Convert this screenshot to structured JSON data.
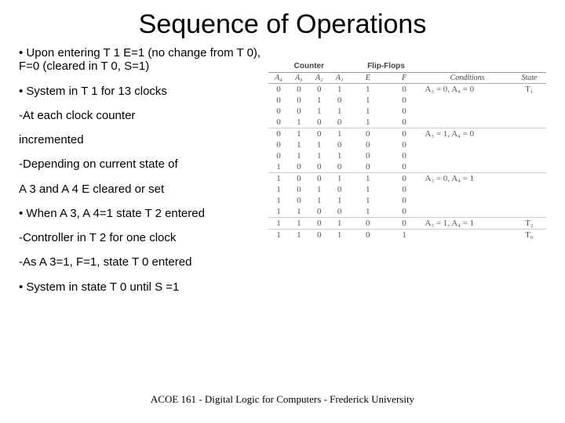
{
  "title": "Sequence of Operations",
  "bullets": [
    "• Upon entering T 1 E=1 (no change from T 0), F=0 (cleared in T 0, S=1)",
    "• System in T 1 for 13 clocks",
    "-At each clock counter",
    "incremented",
    "-Depending on current state of",
    "A 3 and A 4 E cleared or set",
    "• When A 3, A 4=1 state T 2 entered",
    "-Controller in T 2 for one clock",
    "-As A 3=1, F=1, state T 0 entered",
    "• System in state T 0 until S =1"
  ],
  "table": {
    "top_headers": [
      "Counter",
      "Flip-Flops",
      "",
      ""
    ],
    "sub_headers": [
      "A₄",
      "A₃",
      "A₂",
      "A₁",
      "E",
      "F",
      "Conditions",
      "State"
    ],
    "rows": [
      {
        "c": [
          "0",
          "0",
          "0",
          "1",
          "1",
          "0"
        ],
        "cond": "A₃ = 0, A₄ = 0",
        "state": "T₁",
        "grp": true
      },
      {
        "c": [
          "0",
          "0",
          "1",
          "0",
          "1",
          "0"
        ],
        "cond": "",
        "state": ""
      },
      {
        "c": [
          "0",
          "0",
          "1",
          "1",
          "1",
          "0"
        ],
        "cond": "",
        "state": ""
      },
      {
        "c": [
          "0",
          "1",
          "0",
          "0",
          "1",
          "0"
        ],
        "cond": "",
        "state": ""
      },
      {
        "c": [
          "0",
          "1",
          "0",
          "1",
          "0",
          "0"
        ],
        "cond": "A₃ = 1, A₄ = 0",
        "state": "",
        "grp": true
      },
      {
        "c": [
          "0",
          "1",
          "1",
          "0",
          "0",
          "0"
        ],
        "cond": "",
        "state": ""
      },
      {
        "c": [
          "0",
          "1",
          "1",
          "1",
          "0",
          "0"
        ],
        "cond": "",
        "state": ""
      },
      {
        "c": [
          "1",
          "0",
          "0",
          "0",
          "0",
          "0"
        ],
        "cond": "",
        "state": ""
      },
      {
        "c": [
          "1",
          "0",
          "0",
          "1",
          "1",
          "0"
        ],
        "cond": "A₃ = 0, A₄ = 1",
        "state": "",
        "grp": true
      },
      {
        "c": [
          "1",
          "0",
          "1",
          "0",
          "1",
          "0"
        ],
        "cond": "",
        "state": ""
      },
      {
        "c": [
          "1",
          "0",
          "1",
          "1",
          "1",
          "0"
        ],
        "cond": "",
        "state": ""
      },
      {
        "c": [
          "1",
          "1",
          "0",
          "0",
          "1",
          "0"
        ],
        "cond": "",
        "state": ""
      },
      {
        "c": [
          "1",
          "1",
          "0",
          "1",
          "0",
          "0"
        ],
        "cond": "A₃ = 1, A₄ = 1",
        "state": "T₂",
        "grp": true
      },
      {
        "c": [
          "1",
          "1",
          "0",
          "1",
          "0",
          "1"
        ],
        "cond": "",
        "state": "T₀",
        "grp": true
      }
    ]
  },
  "footer": "ACOE 161 - Digital Logic for Computers - Frederick University"
}
